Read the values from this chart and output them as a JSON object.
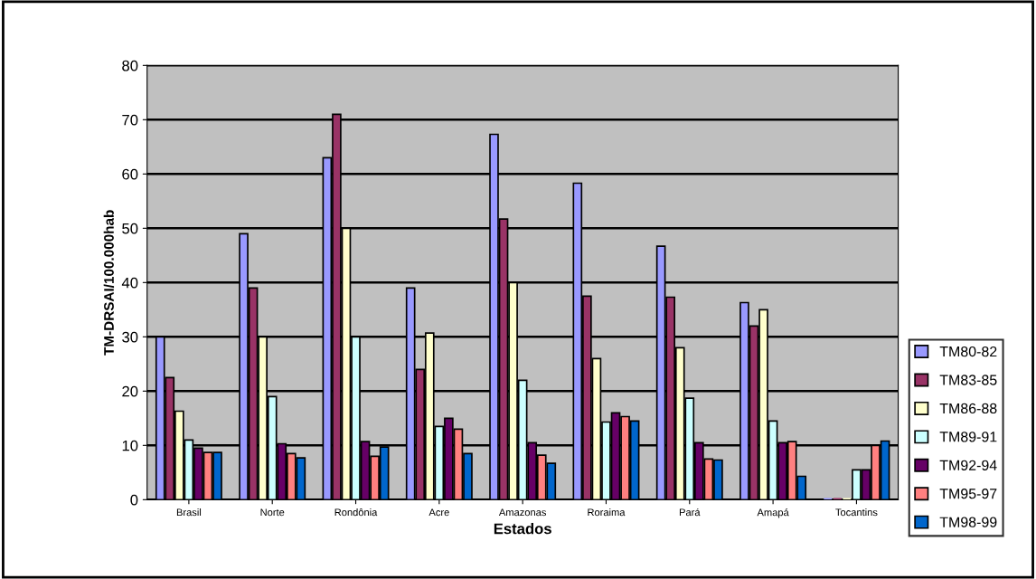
{
  "chart_data": {
    "type": "bar",
    "xlabel": "Estados",
    "ylabel": "TM-DRSAI/100.000hab",
    "categories": [
      "Brasil",
      "Norte",
      "Rondônia",
      "Acre",
      "Amazonas",
      "Roraima",
      "Pará",
      "Amapá",
      "Tocantins"
    ],
    "series": [
      {
        "name": "TM80-82",
        "color": "#9999ff",
        "values": [
          30,
          49,
          63,
          39,
          67.3,
          58.3,
          46.7,
          36.3,
          0.3
        ]
      },
      {
        "name": "TM83-85",
        "color": "#993366",
        "values": [
          22.5,
          39,
          71,
          24,
          51.7,
          37.5,
          37.3,
          32,
          0.3
        ]
      },
      {
        "name": "TM86-88",
        "color": "#ffffcc",
        "values": [
          16.3,
          30,
          50,
          30.7,
          40,
          26,
          28,
          35,
          0.3
        ]
      },
      {
        "name": "TM89-91",
        "color": "#ccffff",
        "values": [
          11,
          19,
          30,
          13.5,
          22,
          14.3,
          18.7,
          14.5,
          5.5
        ]
      },
      {
        "name": "TM92-94",
        "color": "#660066",
        "values": [
          9.5,
          10.3,
          10.7,
          15,
          10.5,
          16,
          10.5,
          10.5,
          5.5
        ]
      },
      {
        "name": "TM95-97",
        "color": "#ff8080",
        "values": [
          8.7,
          8.5,
          8,
          13,
          8.2,
          15.3,
          7.5,
          10.7,
          10
        ]
      },
      {
        "name": "TM98-99",
        "color": "#0066cc",
        "values": [
          8.7,
          7.7,
          9.7,
          8.5,
          6.7,
          14.5,
          7.3,
          4.3,
          10.8
        ]
      }
    ],
    "ylim": [
      0,
      80
    ],
    "yticks": [
      0,
      10,
      20,
      30,
      40,
      50,
      60,
      70,
      80
    ],
    "grid": "y",
    "legend": "bottom right"
  }
}
